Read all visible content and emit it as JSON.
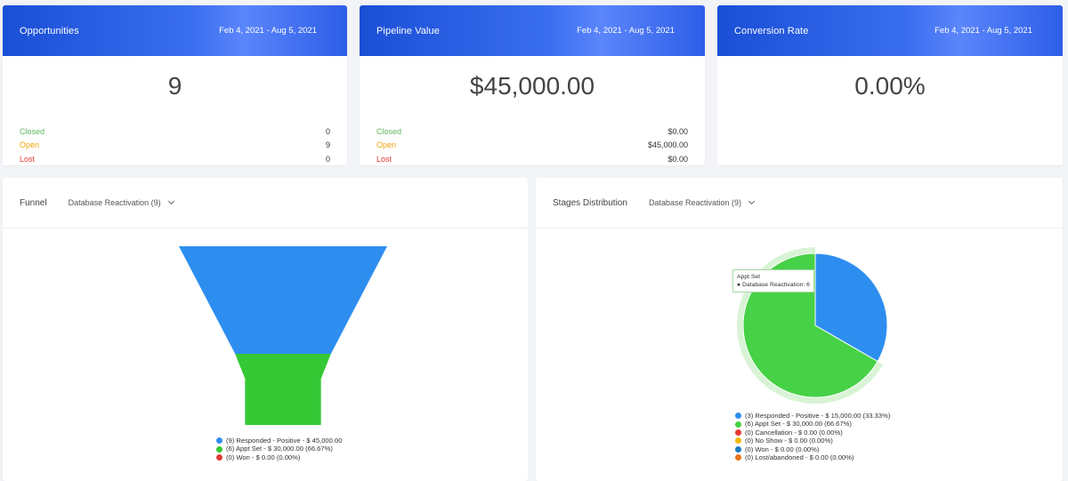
{
  "cards": [
    {
      "title": "Opportunities",
      "date_range": "Feb 4, 2021 - Aug 5, 2021",
      "value": "9",
      "rows": [
        {
          "label": "Closed",
          "value": "0"
        },
        {
          "label": "Open",
          "value": "9"
        },
        {
          "label": "Lost",
          "value": "0"
        }
      ]
    },
    {
      "title": "Pipeline Value",
      "date_range": "Feb 4, 2021 - Aug 5, 2021",
      "value": "$45,000.00",
      "rows": [
        {
          "label": "Closed",
          "value": "$0.00"
        },
        {
          "label": "Open",
          "value": "$45,000.00"
        },
        {
          "label": "Lost",
          "value": "$0.00"
        }
      ]
    },
    {
      "title": "Conversion Rate",
      "date_range": "Feb 4, 2021 - Aug 5, 2021",
      "value": "0.00%"
    }
  ],
  "funnel": {
    "title": "Funnel",
    "pipeline": "Database Reactivation (9)",
    "colors": [
      "#2e8ef0",
      "#36c936",
      "#e53935"
    ],
    "legend": [
      "(9) Responded - Positive - $ 45,000.00",
      "(6) Appt Set - $ 30,000.00 (66.67%)",
      "(0) Won - $ 0.00 (0.00%)"
    ],
    "stages": [
      {
        "name": "Responded - Positive",
        "count": 9
      },
      {
        "name": "Appt Set",
        "count": 6
      }
    ]
  },
  "stages_distribution": {
    "title": "Stages Distribution",
    "pipeline": "Database Reactivation (9)",
    "colors": [
      "#2e8ef0",
      "#47d147",
      "#e53935",
      "#f5b800",
      "#1a7fc4",
      "#e8711a"
    ],
    "legend": [
      "(3) Responded - Positive - $ 15,000.00 (33.33%)",
      "(6) Appt Set - $ 30,000.00 (66.67%)",
      "(0) Cancellation - $ 0.00 (0.00%)",
      "(0) No Show - $ 0.00 (0.00%)",
      "(0) Won - $ 0.00 (0.00%)",
      "(0) Lost/abandoned - $ 0.00 (0.00%)"
    ],
    "slices": [
      {
        "name": "Responded - Positive",
        "value": 3
      },
      {
        "name": "Appt Set",
        "value": 6
      }
    ],
    "tooltip": {
      "title": "Appt Set",
      "line": "● Database Reactivation: 6"
    }
  }
}
